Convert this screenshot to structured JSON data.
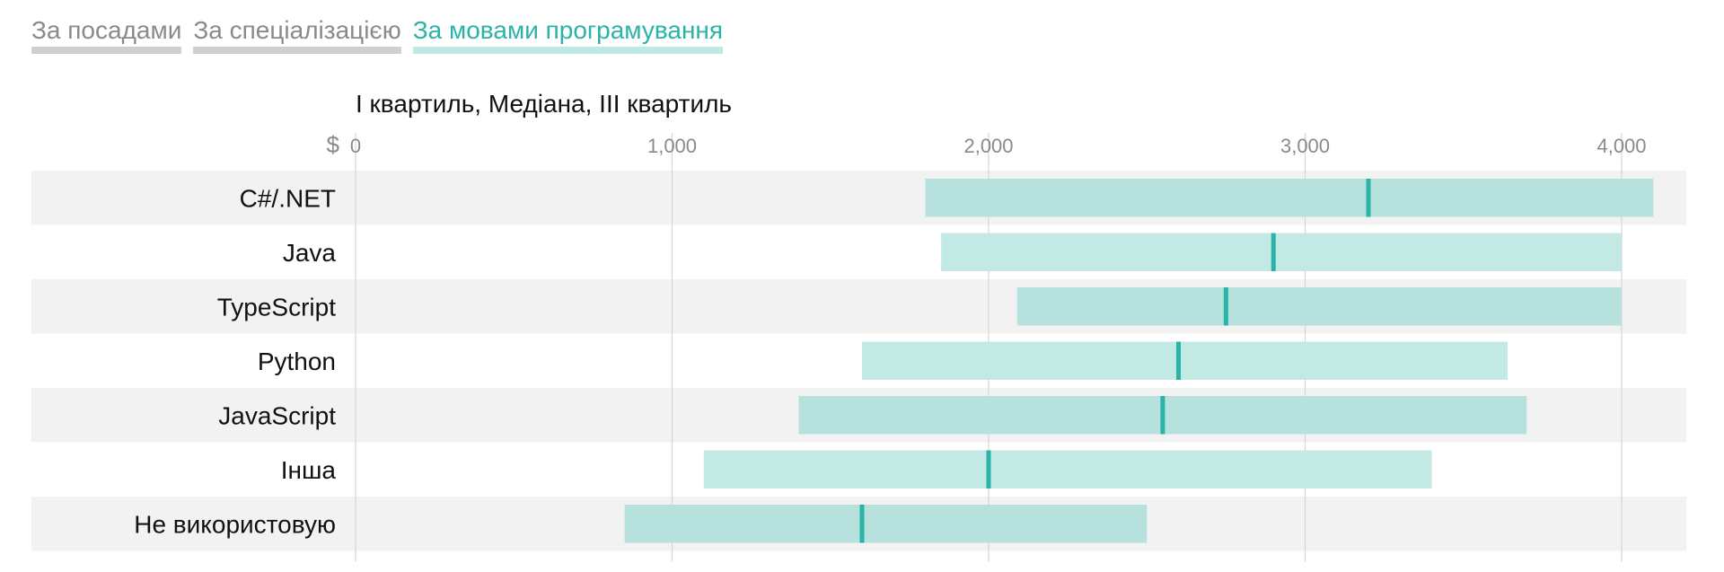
{
  "tabs": [
    {
      "label": "За посадами",
      "active": false
    },
    {
      "label": "За спеціалізацією",
      "active": false
    },
    {
      "label": "За мовами програмування",
      "active": true
    }
  ],
  "colors": {
    "accent": "#2bb3a8",
    "bar": "#c3e9e5",
    "bar_on_stripe": "#b7e1dd",
    "stripe": "#f2f2f2",
    "grid": "#d6d6d6",
    "tab_inactive": "#cfcfcf",
    "tab_active_underline": "#bfe9e5"
  },
  "chart_data": {
    "type": "bar",
    "subtitle": "І квартиль, Медіана, ІІІ квартиль",
    "axis_prefix": "$",
    "xlim": [
      0,
      4200
    ],
    "xticks": [
      0,
      1000,
      2000,
      3000,
      4000
    ],
    "xtick_labels": [
      "0",
      "1,000",
      "2,000",
      "3,000",
      "4,000"
    ],
    "grid": true,
    "categories": [
      "C#/.NET",
      "Java",
      "TypeScript",
      "Python",
      "JavaScript",
      "Інша",
      "Не використовую"
    ],
    "series": [
      {
        "name": "І квартиль",
        "values": [
          1800,
          1850,
          2090,
          1600,
          1400,
          1100,
          850
        ]
      },
      {
        "name": "Медіана",
        "values": [
          3200,
          2900,
          2750,
          2600,
          2550,
          2000,
          1600
        ]
      },
      {
        "name": "ІІІ квартиль",
        "values": [
          4100,
          4000,
          4000,
          3640,
          3700,
          3400,
          2500
        ]
      }
    ]
  }
}
